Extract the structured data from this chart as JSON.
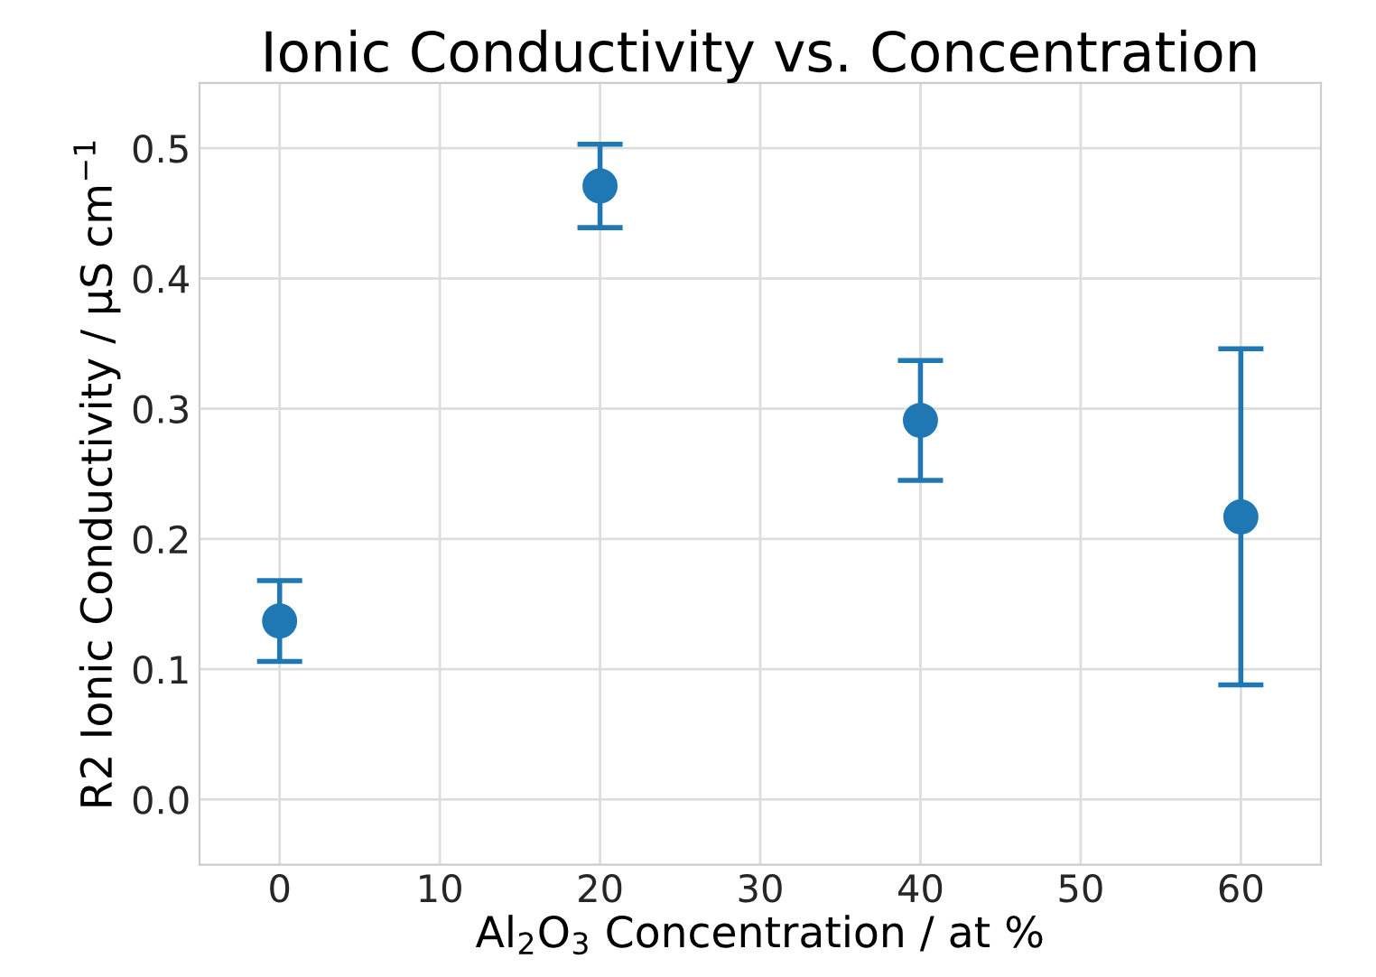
{
  "chart_data": {
    "type": "scatter",
    "title": "Ionic Conductivity vs. Concentration",
    "xlabel": "Al$_{2}$O$_{3}$ Concentration / at %",
    "ylabel": "R2 Ionic Conductivity / μS cm$^{−1}$",
    "x": [
      0,
      20,
      40,
      60
    ],
    "series": [
      {
        "color": "#1f77b4",
        "values": [
          0.137,
          0.471,
          0.291,
          0.217
        ],
        "errors": [
          0.031,
          0.032,
          0.046,
          0.129
        ]
      }
    ],
    "xlim": [
      -5,
      65
    ],
    "xticks": [
      0,
      10,
      20,
      30,
      40,
      50,
      60
    ],
    "ylim": [
      -0.05,
      0.55
    ],
    "yticks": [
      {
        "value": 0,
        "label": "0.0"
      },
      0.1,
      0.2,
      0.3,
      0.4,
      0.5
    ],
    "grid": true,
    "marker": "circle",
    "legend": false
  }
}
